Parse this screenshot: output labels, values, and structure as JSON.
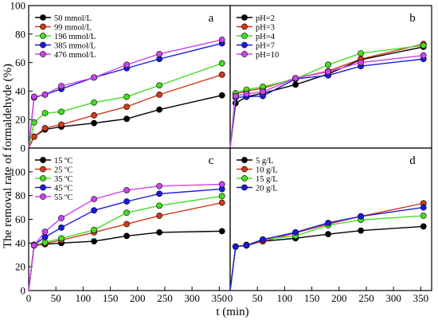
{
  "figure": {
    "ylabel": "The removal rate of formaldehyde (%)",
    "xlabel": "t (min)"
  },
  "chart_data": [
    {
      "type": "line",
      "panel_label": "a",
      "xlim": [
        0,
        370
      ],
      "ylim": [
        0,
        100
      ],
      "xticks": [],
      "yticks": [
        0,
        20,
        40,
        60,
        80,
        100
      ],
      "legend_position": "top-left",
      "x": [
        0,
        10,
        30,
        60,
        120,
        180,
        240,
        355
      ],
      "series": [
        {
          "name": "50 mmol/L",
          "color": "#000000",
          "values": [
            0,
            8,
            13,
            15,
            17.5,
            20.5,
            27,
            37
          ]
        },
        {
          "name": "99 mmol/L",
          "color": "#d03a1a",
          "values": [
            0,
            8,
            14,
            16.5,
            23,
            29,
            37.5,
            51.5
          ]
        },
        {
          "name": "196 mmol/L",
          "color": "#44dd22",
          "values": [
            0,
            18,
            24.5,
            25.5,
            32,
            36,
            44,
            59.5
          ]
        },
        {
          "name": "385 mmol/L",
          "color": "#1a1ae0",
          "values": [
            0,
            35.5,
            37.5,
            41.5,
            49.5,
            56,
            62.5,
            73.5
          ]
        },
        {
          "name": "476 mmol/L",
          "color": "#cc44ee",
          "values": [
            0,
            36,
            37.5,
            43.5,
            49.5,
            58.5,
            66,
            76
          ]
        }
      ]
    },
    {
      "type": "line",
      "panel_label": "b",
      "xlim": [
        0,
        370
      ],
      "ylim": [
        0,
        100
      ],
      "xticks": [],
      "yticks": [],
      "legend_position": "top-left",
      "x": [
        0,
        10,
        30,
        60,
        120,
        180,
        240,
        355
      ],
      "series": [
        {
          "name": "pH=2",
          "color": "#000000",
          "values": [
            0,
            31.5,
            36,
            38.5,
            44.5,
            52,
            62,
            71
          ]
        },
        {
          "name": "pH=3",
          "color": "#d03a1a",
          "values": [
            0,
            38,
            40,
            42,
            49,
            54,
            62.5,
            73
          ]
        },
        {
          "name": "pH=4",
          "color": "#44dd22",
          "values": [
            0,
            38.5,
            41,
            43,
            48.5,
            58.5,
            66.5,
            72
          ]
        },
        {
          "name": "pH=7",
          "color": "#1a1ae0",
          "values": [
            0,
            35.5,
            36,
            36.5,
            48.5,
            51,
            57.5,
            62.5
          ]
        },
        {
          "name": "pH=10",
          "color": "#cc44ee",
          "values": [
            0,
            36.5,
            38,
            39.5,
            49,
            53.5,
            60,
            65
          ]
        }
      ]
    },
    {
      "type": "line",
      "panel_label": "c",
      "xlim": [
        0,
        370
      ],
      "ylim": [
        0,
        120
      ],
      "xticks": [
        0,
        50,
        100,
        150,
        200,
        250,
        300,
        350
      ],
      "yticks": [
        0,
        20,
        40,
        60,
        80,
        100
      ],
      "legend_position": "top-left",
      "x": [
        0,
        10,
        30,
        60,
        120,
        180,
        240,
        355
      ],
      "series": [
        {
          "name": "15 ºC",
          "color": "#000000",
          "values": [
            0,
            38,
            39,
            40,
            41.5,
            46,
            49,
            50
          ]
        },
        {
          "name": "25 ºC",
          "color": "#d03a1a",
          "values": [
            0,
            38,
            39.5,
            42.5,
            49,
            56,
            63,
            74
          ]
        },
        {
          "name": "35 ºC",
          "color": "#44dd22",
          "values": [
            0,
            38.5,
            40.5,
            44,
            51,
            65.5,
            71.5,
            79.5
          ]
        },
        {
          "name": "45 ºC",
          "color": "#1a1ae0",
          "values": [
            0,
            38.5,
            45,
            53,
            67.5,
            75,
            81.5,
            85.5
          ]
        },
        {
          "name": "55 ºC",
          "color": "#cc44ee",
          "values": [
            0,
            38,
            49.5,
            61,
            77,
            84.5,
            88,
            89.5
          ]
        }
      ]
    },
    {
      "type": "line",
      "panel_label": "d",
      "xlim": [
        0,
        370
      ],
      "ylim": [
        0,
        120
      ],
      "xticks": [
        0,
        50,
        100,
        150,
        200,
        250,
        300,
        350
      ],
      "yticks": [],
      "legend_position": "top-left",
      "x": [
        0,
        10,
        30,
        60,
        120,
        180,
        240,
        355
      ],
      "series": [
        {
          "name": "5 g/L",
          "color": "#000000",
          "values": [
            0,
            37,
            38,
            41.5,
            44,
            47.5,
            50.5,
            54
          ]
        },
        {
          "name": "10 g/L",
          "color": "#d03a1a",
          "values": [
            0,
            37,
            38.5,
            41.5,
            48.5,
            56,
            62.5,
            73.5
          ]
        },
        {
          "name": "15 g/L",
          "color": "#44dd22",
          "values": [
            0,
            37,
            38,
            43,
            46,
            55,
            59.5,
            63
          ]
        },
        {
          "name": "20 g/L",
          "color": "#1a1ae0",
          "values": [
            0,
            37,
            38,
            43,
            49,
            57,
            62.5,
            70
          ]
        }
      ]
    }
  ]
}
